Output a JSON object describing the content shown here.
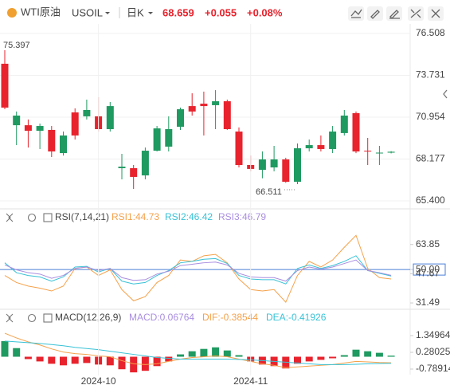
{
  "header": {
    "symbol": "WTI原油",
    "code": "USOIL",
    "period": "日K",
    "price": "68.659",
    "change": "+0.055",
    "change_pct": "+0.08%"
  },
  "chart_data": [
    {
      "type": "candlestick",
      "up_color": "#1f9a61",
      "down_color": "#e8232d",
      "open": [
        74.5,
        70.42,
        70.42,
        70.05,
        70.11,
        68.57,
        71.27,
        71.01,
        71.01,
        70.16,
        67.57,
        67.57,
        67.09,
        68.73,
        69.0,
        70.32,
        71.69,
        71.85,
        71.75,
        72.01,
        70.0,
        67.78,
        67.46,
        67.62,
        68.15,
        66.67,
        68.89,
        69.1,
        68.84,
        69.9,
        71.22,
        68.73,
        68.57,
        68.6
      ],
      "high": [
        75.397,
        71.33,
        70.8,
        70.53,
        70.37,
        70.0,
        71.54,
        72.12,
        72.28,
        71.96,
        68.52,
        67.78,
        68.94,
        70.37,
        71.01,
        71.59,
        72.54,
        72.65,
        72.75,
        72.12,
        70.27,
        68.41,
        68.68,
        69.05,
        68.26,
        69.21,
        69.47,
        69.74,
        70.37,
        71.43,
        71.33,
        69.58,
        69.05,
        68.7
      ],
      "low": [
        71.48,
        69.1,
        68.94,
        68.84,
        68.31,
        68.41,
        69.47,
        70.8,
        70.0,
        70.0,
        66.83,
        66.19,
        66.83,
        68.68,
        68.68,
        70.11,
        71.06,
        69.74,
        70.16,
        70.11,
        67.62,
        67.36,
        66.9,
        67.36,
        66.6,
        66.511,
        68.68,
        68.68,
        68.57,
        69.74,
        68.57,
        67.78,
        67.78,
        68.55
      ],
      "close": [
        71.59,
        71.06,
        70.05,
        70.37,
        68.68,
        69.74,
        69.74,
        71.43,
        70.16,
        71.69,
        67.67,
        66.99,
        68.73,
        70.21,
        70.16,
        71.48,
        71.33,
        71.69,
        72.01,
        70.16,
        67.78,
        67.52,
        68.15,
        68.15,
        66.67,
        68.89,
        69.1,
        68.84,
        70.0,
        71.06,
        68.68,
        68.68,
        68.6,
        68.659
      ],
      "annotations": [
        "75.397",
        "66.511"
      ],
      "ylim": [
        64.871,
        77.143
      ],
      "yticks": [
        76.508,
        73.731,
        70.954,
        68.177,
        {
          "value": 65.4,
          "label": "65.400"
        }
      ],
      "grid": true
    },
    {
      "type": "line",
      "title": "RSI(7,14,21)",
      "ylim": [
        27.98,
        74.77
      ],
      "yticks": [
        63.85,
        {
          "value": 50,
          "label": "50.00"
        },
        47.67,
        31.49
      ],
      "reference_line": 50,
      "reference_color": "#4a7fd8",
      "series": [
        {
          "name": "RSI1:44.73",
          "color": "#f5a14a",
          "values": [
            46.7,
            42.8,
            40.85,
            39.68,
            38.12,
            40.85,
            50.6,
            51.38,
            46.7,
            49.82,
            38.9,
            32.66,
            35.0,
            42.8,
            46.7,
            55.28,
            54.5,
            57.62,
            58.4,
            53.72,
            44.75,
            38.9,
            38.12,
            38.9,
            31.89,
            46.7,
            54.5,
            51.38,
            55.28,
            62.29,
            68.92,
            50.6,
            45.53,
            44.73
          ]
        },
        {
          "name": "RSI2:46.42",
          "color": "#38c2d6",
          "values": [
            53.72,
            48.26,
            46.7,
            45.92,
            43.58,
            45.92,
            51.38,
            51.77,
            48.65,
            50.6,
            43.58,
            42.02,
            42.8,
            46.7,
            49.43,
            53.72,
            54.5,
            55.67,
            56.06,
            53.33,
            46.7,
            44.75,
            44.36,
            44.36,
            42.02,
            50.6,
            52.55,
            50.6,
            52.16,
            54.5,
            57.62,
            49.43,
            47.87,
            46.42
          ]
        },
        {
          "name": "RSI3:46.79",
          "color": "#a98ee0",
          "values": [
            52.55,
            49.82,
            48.26,
            47.48,
            45.14,
            46.7,
            50.6,
            51.38,
            49.43,
            50.6,
            45.53,
            43.97,
            44.36,
            47.48,
            49.04,
            52.16,
            52.94,
            53.72,
            54.11,
            52.55,
            47.87,
            45.92,
            45.53,
            45.53,
            43.58,
            49.43,
            51.38,
            50.21,
            51.38,
            53.33,
            55.28,
            49.43,
            48.26,
            46.79
          ]
        }
      ]
    },
    {
      "type": "macd",
      "title": "MACD(12,26,9)",
      "ylim": [
        -1.196,
        1.91
      ],
      "yticks": [
        1.34964,
        0.28025,
        -0.78914
      ],
      "categories": [
        null,
        null,
        null,
        null,
        null,
        null,
        null,
        null,
        "2024-10",
        null,
        null,
        null,
        null,
        null,
        null,
        null,
        null,
        null,
        null,
        null,
        null,
        "2024-11",
        null,
        null,
        null,
        null,
        null,
        null,
        null,
        null,
        null,
        null,
        null,
        null
      ],
      "series": [
        {
          "name": "MACD:0.06764",
          "color": "#a98ee0",
          "up_color": "#1f9a61",
          "down_color": "#e8232d",
          "values": [
            1.0,
            0.55,
            -0.15,
            -0.3,
            -0.45,
            -0.55,
            -0.45,
            -0.4,
            -0.5,
            -0.55,
            -0.8,
            -1.0,
            -0.9,
            -0.6,
            -0.3,
            0.15,
            0.35,
            0.5,
            0.6,
            0.4,
            0.1,
            -0.3,
            -0.5,
            -0.6,
            -0.75,
            -0.45,
            -0.3,
            -0.2,
            -0.1,
            0.1,
            0.45,
            0.35,
            0.25,
            0.06764
          ]
        },
        {
          "name": "DIF:-0.38544",
          "color": "#f5a14a",
          "values": [
            1.5,
            1.2,
            0.95,
            0.75,
            0.5,
            0.3,
            0.2,
            0.15,
            0.05,
            0,
            -0.25,
            -0.45,
            -0.5,
            -0.45,
            -0.3,
            -0.15,
            -0.05,
            0,
            0.05,
            0,
            -0.15,
            -0.3,
            -0.45,
            -0.55,
            -0.7,
            -0.65,
            -0.6,
            -0.55,
            -0.5,
            -0.4,
            -0.3,
            -0.33,
            -0.37,
            -0.38544
          ]
        },
        {
          "name": "DEA:-0.41926",
          "color": "#38c2d6",
          "values": [
            1.0,
            0.95,
            0.9,
            0.85,
            0.78,
            0.7,
            0.6,
            0.52,
            0.45,
            0.35,
            0.25,
            0.15,
            0.05,
            -0.05,
            -0.1,
            -0.15,
            -0.15,
            -0.15,
            -0.15,
            -0.15,
            -0.17,
            -0.2,
            -0.25,
            -0.3,
            -0.35,
            -0.4,
            -0.45,
            -0.5,
            -0.5,
            -0.5,
            -0.48,
            -0.45,
            -0.43,
            -0.41926
          ]
        }
      ]
    }
  ]
}
